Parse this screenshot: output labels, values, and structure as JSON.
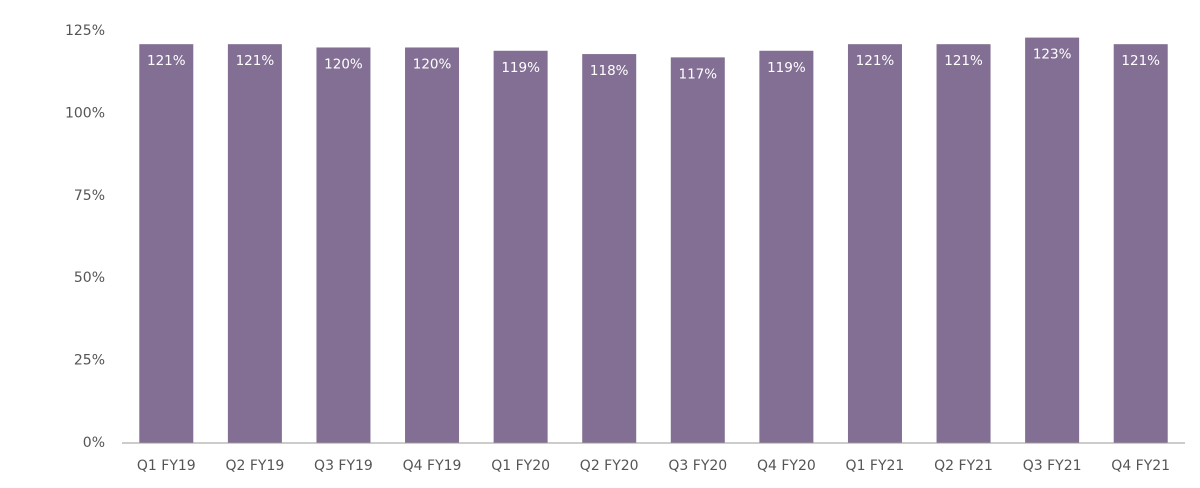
{
  "chart_data": {
    "type": "bar",
    "categories": [
      "Q1 FY19",
      "Q2 FY19",
      "Q3 FY19",
      "Q4 FY19",
      "Q1 FY20",
      "Q2 FY20",
      "Q3 FY20",
      "Q4 FY20",
      "Q1 FY21",
      "Q2 FY21",
      "Q3 FY21",
      "Q4 FY21"
    ],
    "values": [
      121,
      121,
      120,
      120,
      119,
      118,
      117,
      119,
      121,
      121,
      123,
      121
    ],
    "value_labels": [
      "121%",
      "121%",
      "120%",
      "120%",
      "119%",
      "118%",
      "117%",
      "119%",
      "121%",
      "121%",
      "123%",
      "121%"
    ],
    "color": "#826f93",
    "ylim": [
      0,
      125
    ],
    "yticks": [
      {
        "value": 0,
        "label": "0%"
      },
      {
        "value": 25,
        "label": "25%"
      },
      {
        "value": 50,
        "label": "50%"
      },
      {
        "value": 75,
        "label": "75%"
      },
      {
        "value": 100,
        "label": "100%"
      },
      {
        "value": 125,
        "label": "125%"
      }
    ],
    "grid": false
  }
}
